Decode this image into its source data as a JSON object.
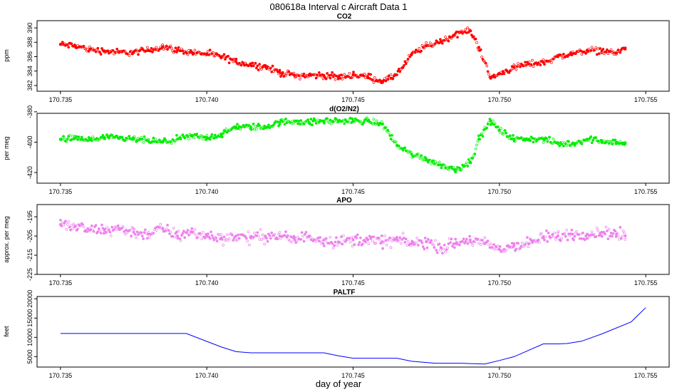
{
  "figure": {
    "title": "080618a   Interval c Aircraft Data 1",
    "xlabel": "day of year"
  },
  "colors": {
    "co2": "#ff0000",
    "o2n2": "#00ee00",
    "apo": "#ee82ee",
    "paltf": "#0000ff",
    "axis": "#000000"
  },
  "chart_data": [
    {
      "type": "scatter",
      "title": "CO2",
      "ylabel": "ppm",
      "xlim": [
        170.7342,
        170.7558
      ],
      "ylim": [
        381.2,
        391.0
      ],
      "xticks": [
        170.735,
        170.74,
        170.745,
        170.75,
        170.755
      ],
      "xtick_labels": [
        "170.735",
        "170.740",
        "170.745",
        "170.750",
        "170.755"
      ],
      "yticks": [
        382,
        384,
        386,
        388,
        390
      ],
      "ytick_labels": [
        "382",
        "384",
        "386",
        "388",
        "390"
      ],
      "series": [
        {
          "name": "CO2",
          "x": [
            170.735,
            170.7355,
            170.736,
            170.7365,
            170.737,
            170.7375,
            170.738,
            170.7385,
            170.739,
            170.7395,
            170.74,
            170.7405,
            170.741,
            170.7415,
            170.742,
            170.7425,
            170.743,
            170.7435,
            170.744,
            170.7445,
            170.745,
            170.7455,
            170.746,
            170.7463,
            170.7467,
            170.747,
            170.7475,
            170.748,
            170.7483,
            170.7487,
            170.749,
            170.7493,
            170.7497,
            170.75,
            170.7505,
            170.751,
            170.7515,
            170.752,
            170.7525,
            170.753,
            170.7535,
            170.754,
            170.7543
          ],
          "y": [
            387.7,
            387.5,
            387.0,
            386.8,
            386.6,
            386.6,
            386.9,
            387.4,
            386.9,
            386.6,
            386.4,
            386.0,
            385.3,
            384.9,
            384.6,
            383.8,
            383.4,
            383.4,
            383.4,
            383.1,
            383.5,
            383.2,
            382.6,
            383.0,
            384.5,
            386.3,
            387.5,
            388.1,
            388.7,
            389.4,
            389.6,
            387.3,
            383.0,
            383.6,
            384.5,
            385.0,
            385.2,
            386.0,
            386.4,
            386.9,
            386.8,
            386.5,
            387.2
          ]
        }
      ]
    },
    {
      "type": "scatter",
      "title": "d(O2/N2)",
      "ylabel": "per meg",
      "xlim": [
        170.7342,
        170.7558
      ],
      "ylim": [
        -427.0,
        -381.0
      ],
      "xticks": [
        170.735,
        170.74,
        170.745,
        170.75,
        170.755
      ],
      "xtick_labels": [
        "170.735",
        "170.740",
        "170.745",
        "170.750",
        "170.755"
      ],
      "yticks": [
        -420,
        -400,
        -380
      ],
      "ytick_labels": [
        "-420",
        "-400",
        "-380"
      ],
      "series": [
        {
          "name": "d(O2/N2)",
          "x": [
            170.735,
            170.7355,
            170.736,
            170.7365,
            170.737,
            170.7375,
            170.738,
            170.7385,
            170.739,
            170.7395,
            170.74,
            170.7405,
            170.741,
            170.7415,
            170.742,
            170.7425,
            170.743,
            170.7435,
            170.744,
            170.7445,
            170.745,
            170.7455,
            170.746,
            170.7465,
            170.747,
            170.7475,
            170.748,
            170.7485,
            170.749,
            170.7493,
            170.7497,
            170.75,
            170.7505,
            170.751,
            170.7515,
            170.752,
            170.7525,
            170.753,
            170.7535,
            170.754,
            170.7543
          ],
          "y": [
            -398.0,
            -397.5,
            -398.5,
            -397.0,
            -397.5,
            -398.0,
            -399.0,
            -400.0,
            -398.0,
            -396.0,
            -397.0,
            -395.0,
            -390.0,
            -390.0,
            -390.0,
            -387.0,
            -386.0,
            -387.0,
            -386.0,
            -386.0,
            -386.0,
            -386.0,
            -388.0,
            -402.0,
            -408.0,
            -411.0,
            -415.0,
            -418.0,
            -413.0,
            -398.0,
            -386.0,
            -392.0,
            -398.0,
            -398.0,
            -398.0,
            -401.0,
            -401.0,
            -398.0,
            -399.0,
            -400.0,
            -401.0
          ]
        }
      ]
    },
    {
      "type": "scatter",
      "title": "APO",
      "ylabel": "approx. per meg",
      "xlim": [
        170.7342,
        170.7558
      ],
      "ylim": [
        -225.0,
        -188.6
      ],
      "xticks": [
        170.735,
        170.74,
        170.745,
        170.75,
        170.755
      ],
      "xtick_labels": [
        "170.735",
        "170.740",
        "170.745",
        "170.750",
        "170.755"
      ],
      "yticks": [
        -225,
        -215,
        -205,
        -195
      ],
      "ytick_labels": [
        "-225",
        "-215",
        "-205",
        "-195"
      ],
      "series": [
        {
          "name": "APO",
          "x": [
            170.735,
            170.7355,
            170.736,
            170.7365,
            170.737,
            170.7375,
            170.738,
            170.7385,
            170.739,
            170.7395,
            170.74,
            170.7405,
            170.741,
            170.7415,
            170.742,
            170.7425,
            170.743,
            170.7435,
            170.744,
            170.7445,
            170.745,
            170.7455,
            170.746,
            170.7465,
            170.747,
            170.7475,
            170.748,
            170.7485,
            170.749,
            170.7495,
            170.75,
            170.7505,
            170.751,
            170.7515,
            170.752,
            170.7525,
            170.753,
            170.7535,
            170.754,
            170.7543
          ],
          "y": [
            -199.0,
            -200.0,
            -202.0,
            -202.0,
            -201.0,
            -203.0,
            -204.0,
            -201.0,
            -205.0,
            -203.0,
            -205.0,
            -206.0,
            -205.0,
            -206.0,
            -205.0,
            -205.0,
            -207.0,
            -205.0,
            -207.0,
            -208.0,
            -207.0,
            -207.0,
            -208.0,
            -207.0,
            -209.0,
            -208.0,
            -211.0,
            -209.0,
            -207.0,
            -209.0,
            -212.0,
            -210.0,
            -209.0,
            -206.0,
            -205.0,
            -204.0,
            -204.0,
            -203.0,
            -204.0,
            -205.0
          ]
        }
      ]
    },
    {
      "type": "line",
      "title": "PALTF",
      "ylabel": "feet",
      "xlim": [
        170.7342,
        170.7558
      ],
      "ylim": [
        2300,
        20600
      ],
      "xticks": [
        170.735,
        170.74,
        170.745,
        170.75,
        170.755
      ],
      "xtick_labels": [
        "170.735",
        "170.740",
        "170.745",
        "170.750",
        "170.755"
      ],
      "yticks": [
        5000,
        10000,
        15000,
        20000
      ],
      "ytick_labels": [
        "5000",
        "10000",
        "15000",
        "20000"
      ],
      "series": [
        {
          "name": "PALTF",
          "x": [
            170.735,
            170.7393,
            170.7405,
            170.741,
            170.7415,
            170.7425,
            170.744,
            170.7445,
            170.745,
            170.7458,
            170.7465,
            170.747,
            170.7478,
            170.7483,
            170.7487,
            170.749,
            170.7495,
            170.75,
            170.7505,
            170.7515,
            170.752,
            170.7523,
            170.7528,
            170.7535,
            170.7545,
            170.755
          ],
          "y": [
            11000,
            11000,
            7500,
            6300,
            6000,
            6000,
            6000,
            5200,
            4600,
            4600,
            4600,
            3800,
            3300,
            3300,
            3300,
            3200,
            3100,
            4000,
            5000,
            8300,
            8300,
            8400,
            9000,
            10900,
            14000,
            17700
          ]
        }
      ]
    }
  ]
}
